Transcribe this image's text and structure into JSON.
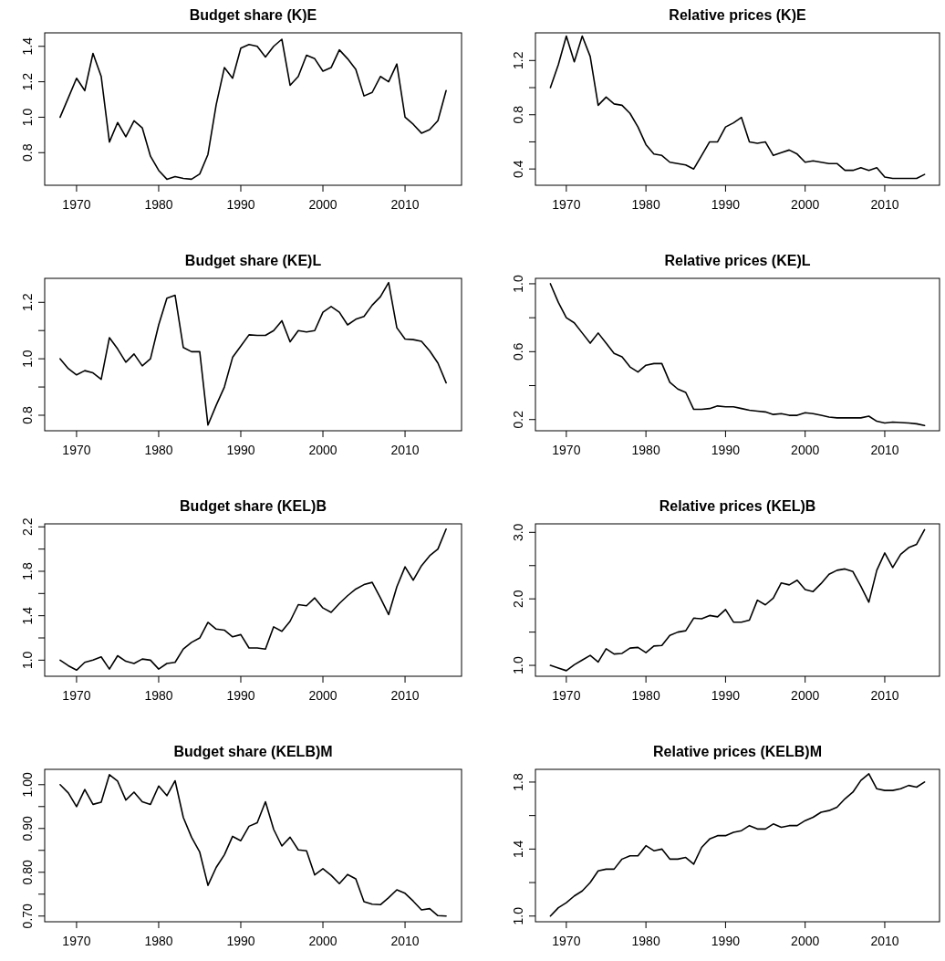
{
  "chart_data": [
    {
      "type": "line",
      "title": "Budget share (K)E",
      "color": "#000000",
      "xlim": [
        1966.12,
        2016.88
      ],
      "xticks": [
        1970,
        1980,
        1990,
        2000,
        2010
      ],
      "ylim": [
        0.616,
        1.476
      ],
      "yticks": [
        0.8,
        {
          "value": 1.0,
          "label": "1.0"
        },
        1.2,
        1.4
      ],
      "x": [
        1968,
        1969,
        1970,
        1971,
        1972,
        1973,
        1974,
        1975,
        1976,
        1977,
        1978,
        1979,
        1980,
        1981,
        1982,
        1983,
        1984,
        1985,
        1986,
        1987,
        1988,
        1989,
        1990,
        1991,
        1992,
        1993,
        1994,
        1995,
        1996,
        1997,
        1998,
        1999,
        2000,
        2001,
        2002,
        2003,
        2004,
        2005,
        2006,
        2007,
        2008,
        2009,
        2010,
        2011,
        2012,
        2013,
        2014,
        2015
      ],
      "values": [
        1.0,
        1.11,
        1.22,
        1.15,
        1.36,
        1.23,
        0.86,
        0.97,
        0.89,
        0.98,
        0.94,
        0.78,
        0.7,
        0.65,
        0.665,
        0.655,
        0.65,
        0.68,
        0.79,
        1.07,
        1.28,
        1.22,
        1.39,
        1.41,
        1.4,
        1.34,
        1.4,
        1.44,
        1.18,
        1.23,
        1.35,
        1.33,
        1.26,
        1.28,
        1.38,
        1.33,
        1.27,
        1.12,
        1.14,
        1.23,
        1.2,
        1.3,
        1.0,
        0.96,
        0.91,
        0.93,
        0.98,
        1.15
      ]
    },
    {
      "type": "line",
      "title": "Relative prices (K)E",
      "color": "#000000",
      "xlim": [
        1966.12,
        2016.88
      ],
      "xticks": [
        1970,
        1980,
        1990,
        2000,
        2010
      ],
      "ylim": [
        0.28,
        1.404
      ],
      "yticks": [
        0.4,
        {
          "value": 0.6,
          "label": null
        },
        0.8,
        {
          "value": 1.0,
          "label": null
        },
        1.2
      ],
      "x": [
        1968,
        1969,
        1970,
        1971,
        1972,
        1973,
        1974,
        1975,
        1976,
        1977,
        1978,
        1979,
        1980,
        1981,
        1982,
        1983,
        1984,
        1985,
        1986,
        1987,
        1988,
        1989,
        1990,
        1991,
        1992,
        1993,
        1994,
        1995,
        1996,
        1997,
        1998,
        1999,
        2000,
        2001,
        2002,
        2003,
        2004,
        2005,
        2006,
        2007,
        2008,
        2009,
        2010,
        2011,
        2012,
        2013,
        2014,
        2015
      ],
      "values": [
        1.0,
        1.17,
        1.38,
        1.19,
        1.38,
        1.23,
        0.87,
        0.93,
        0.88,
        0.87,
        0.81,
        0.71,
        0.58,
        0.51,
        0.5,
        0.45,
        0.44,
        0.43,
        0.4,
        0.5,
        0.6,
        0.6,
        0.71,
        0.74,
        0.78,
        0.6,
        0.59,
        0.6,
        0.5,
        0.52,
        0.54,
        0.51,
        0.45,
        0.46,
        0.45,
        0.44,
        0.44,
        0.39,
        0.39,
        0.41,
        0.39,
        0.41,
        0.34,
        0.33,
        0.33,
        0.33,
        0.33,
        0.36
      ]
    },
    {
      "type": "line",
      "title": "Budget share (KE)L",
      "color": "#000000",
      "xlim": [
        1966.12,
        2016.88
      ],
      "xticks": [
        1970,
        1980,
        1990,
        2000,
        2010
      ],
      "ylim": [
        0.745,
        1.285
      ],
      "yticks": [
        0.8,
        {
          "value": 0.9,
          "label": null
        },
        {
          "value": 1.0,
          "label": "1.0"
        },
        {
          "value": 1.1,
          "label": null
        },
        1.2
      ],
      "x": [
        1968,
        1969,
        1970,
        1971,
        1972,
        1973,
        1974,
        1975,
        1976,
        1977,
        1978,
        1979,
        1980,
        1981,
        1982,
        1983,
        1984,
        1985,
        1986,
        1987,
        1988,
        1989,
        1990,
        1991,
        1992,
        1993,
        1994,
        1995,
        1996,
        1997,
        1998,
        1999,
        2000,
        2001,
        2002,
        2003,
        2004,
        2005,
        2006,
        2007,
        2008,
        2009,
        2010,
        2011,
        2012,
        2013,
        2014,
        2015
      ],
      "values": [
        1.0,
        0.965,
        0.943,
        0.958,
        0.95,
        0.927,
        1.075,
        1.035,
        0.988,
        1.017,
        0.975,
        1.0,
        1.12,
        1.215,
        1.225,
        1.04,
        1.025,
        1.025,
        0.765,
        0.835,
        0.9,
        1.005,
        1.045,
        1.085,
        1.083,
        1.083,
        1.1,
        1.135,
        1.06,
        1.1,
        1.095,
        1.1,
        1.165,
        1.185,
        1.165,
        1.12,
        1.14,
        1.15,
        1.19,
        1.22,
        1.27,
        1.11,
        1.07,
        1.068,
        1.062,
        1.028,
        0.985,
        0.915
      ]
    },
    {
      "type": "line",
      "title": "Relative prices (KE)L",
      "color": "#000000",
      "xlim": [
        1966.12,
        2016.88
      ],
      "xticks": [
        1970,
        1980,
        1990,
        2000,
        2010
      ],
      "ylim": [
        0.134,
        1.032
      ],
      "yticks": [
        0.2,
        {
          "value": 0.4,
          "label": null
        },
        0.6,
        {
          "value": 0.8,
          "label": null
        },
        {
          "value": 1.0,
          "label": "1.0"
        }
      ],
      "x": [
        1968,
        1969,
        1970,
        1971,
        1972,
        1973,
        1974,
        1975,
        1976,
        1977,
        1978,
        1979,
        1980,
        1981,
        1982,
        1983,
        1984,
        1985,
        1986,
        1987,
        1988,
        1989,
        1990,
        1991,
        1992,
        1993,
        1994,
        1995,
        1996,
        1997,
        1998,
        1999,
        2000,
        2001,
        2002,
        2003,
        2004,
        2005,
        2006,
        2007,
        2008,
        2009,
        2010,
        2011,
        2012,
        2013,
        2014,
        2015
      ],
      "values": [
        1.0,
        0.89,
        0.8,
        0.77,
        0.71,
        0.65,
        0.71,
        0.65,
        0.59,
        0.57,
        0.51,
        0.48,
        0.52,
        0.53,
        0.53,
        0.42,
        0.38,
        0.36,
        0.26,
        0.26,
        0.265,
        0.28,
        0.275,
        0.275,
        0.265,
        0.255,
        0.25,
        0.245,
        0.23,
        0.235,
        0.225,
        0.225,
        0.24,
        0.235,
        0.225,
        0.215,
        0.21,
        0.21,
        0.21,
        0.21,
        0.22,
        0.19,
        0.18,
        0.185,
        0.182,
        0.18,
        0.175,
        0.165
      ]
    },
    {
      "type": "line",
      "title": "Budget share (KEL)B",
      "color": "#000000",
      "xlim": [
        1966.12,
        2016.88
      ],
      "xticks": [
        1970,
        1980,
        1990,
        2000,
        2010
      ],
      "ylim": [
        0.855,
        2.227
      ],
      "yticks": [
        {
          "value": 1.0,
          "label": "1.0"
        },
        {
          "value": 1.2,
          "label": null
        },
        1.4,
        {
          "value": 1.6,
          "label": null
        },
        1.8,
        {
          "value": 2.0,
          "label": null
        },
        2.2
      ],
      "x": [
        1968,
        1969,
        1970,
        1971,
        1972,
        1973,
        1974,
        1975,
        1976,
        1977,
        1978,
        1979,
        1980,
        1981,
        1982,
        1983,
        1984,
        1985,
        1986,
        1987,
        1988,
        1989,
        1990,
        1991,
        1992,
        1993,
        1994,
        1995,
        1996,
        1997,
        1998,
        1999,
        2000,
        2001,
        2002,
        2003,
        2004,
        2005,
        2006,
        2007,
        2008,
        2009,
        2010,
        2011,
        2012,
        2013,
        2014,
        2015
      ],
      "values": [
        1.0,
        0.95,
        0.91,
        0.98,
        1.0,
        1.03,
        0.92,
        1.04,
        0.99,
        0.97,
        1.01,
        1.0,
        0.92,
        0.97,
        0.98,
        1.1,
        1.16,
        1.2,
        1.34,
        1.28,
        1.27,
        1.21,
        1.23,
        1.11,
        1.11,
        1.1,
        1.3,
        1.26,
        1.35,
        1.5,
        1.49,
        1.56,
        1.47,
        1.43,
        1.51,
        1.58,
        1.64,
        1.68,
        1.7,
        1.56,
        1.41,
        1.66,
        1.84,
        1.72,
        1.85,
        1.94,
        2.0,
        2.18
      ]
    },
    {
      "type": "line",
      "title": "Relative prices (KEL)B",
      "color": "#000000",
      "xlim": [
        1966.12,
        2016.88
      ],
      "xticks": [
        1970,
        1980,
        1990,
        2000,
        2010
      ],
      "ylim": [
        0.836,
        3.128
      ],
      "yticks": [
        {
          "value": 1.0,
          "label": "1.0"
        },
        {
          "value": 1.5,
          "label": null
        },
        {
          "value": 2.0,
          "label": "2.0"
        },
        {
          "value": 2.5,
          "label": null
        },
        {
          "value": 3.0,
          "label": "3.0"
        }
      ],
      "x": [
        1968,
        1969,
        1970,
        1971,
        1972,
        1973,
        1974,
        1975,
        1976,
        1977,
        1978,
        1979,
        1980,
        1981,
        1982,
        1983,
        1984,
        1985,
        1986,
        1987,
        1988,
        1989,
        1990,
        1991,
        1992,
        1993,
        1994,
        1995,
        1996,
        1997,
        1998,
        1999,
        2000,
        2001,
        2002,
        2003,
        2004,
        2005,
        2006,
        2007,
        2008,
        2009,
        2010,
        2011,
        2012,
        2013,
        2014,
        2015
      ],
      "values": [
        1.0,
        0.96,
        0.92,
        1.01,
        1.08,
        1.15,
        1.05,
        1.25,
        1.17,
        1.18,
        1.26,
        1.27,
        1.19,
        1.29,
        1.3,
        1.45,
        1.5,
        1.52,
        1.71,
        1.7,
        1.75,
        1.73,
        1.84,
        1.65,
        1.65,
        1.68,
        1.98,
        1.91,
        2.01,
        2.24,
        2.21,
        2.28,
        2.14,
        2.11,
        2.23,
        2.37,
        2.43,
        2.45,
        2.41,
        2.19,
        1.95,
        2.43,
        2.69,
        2.47,
        2.67,
        2.77,
        2.82,
        3.04
      ]
    },
    {
      "type": "line",
      "title": "Budget share (KELB)M",
      "color": "#000000",
      "xlim": [
        1966.12,
        2016.88
      ],
      "xticks": [
        1970,
        1980,
        1990,
        2000,
        2010
      ],
      "ylim": [
        0.687,
        1.035
      ],
      "yticks": [
        {
          "value": 0.7,
          "label": "0.70"
        },
        {
          "value": 0.75,
          "label": null
        },
        {
          "value": 0.8,
          "label": "0.80"
        },
        {
          "value": 0.85,
          "label": null
        },
        {
          "value": 0.9,
          "label": "0.90"
        },
        {
          "value": 0.95,
          "label": null
        },
        {
          "value": 1.0,
          "label": "1.00"
        }
      ],
      "x": [
        1968,
        1969,
        1970,
        1971,
        1972,
        1973,
        1974,
        1975,
        1976,
        1977,
        1978,
        1979,
        1980,
        1981,
        1982,
        1983,
        1984,
        1985,
        1986,
        1987,
        1988,
        1989,
        1990,
        1991,
        1992,
        1993,
        1994,
        1995,
        1996,
        1997,
        1998,
        1999,
        2000,
        2001,
        2002,
        2003,
        2004,
        2005,
        2006,
        2007,
        2008,
        2009,
        2010,
        2011,
        2012,
        2013,
        2014,
        2015
      ],
      "values": [
        1.0,
        0.981,
        0.95,
        0.989,
        0.955,
        0.96,
        1.023,
        1.008,
        0.965,
        0.983,
        0.961,
        0.955,
        0.997,
        0.975,
        1.009,
        0.925,
        0.88,
        0.846,
        0.77,
        0.811,
        0.84,
        0.882,
        0.872,
        0.905,
        0.913,
        0.961,
        0.898,
        0.86,
        0.88,
        0.851,
        0.849,
        0.794,
        0.808,
        0.793,
        0.774,
        0.795,
        0.785,
        0.733,
        0.727,
        0.726,
        0.742,
        0.76,
        0.752,
        0.734,
        0.714,
        0.717,
        0.701,
        0.7
      ]
    },
    {
      "type": "line",
      "title": "Relative prices (KELB)M",
      "color": "#000000",
      "xlim": [
        1966.12,
        2016.88
      ],
      "xticks": [
        1970,
        1980,
        1990,
        2000,
        2010
      ],
      "ylim": [
        0.966,
        1.876
      ],
      "yticks": [
        {
          "value": 1.0,
          "label": "1.0"
        },
        {
          "value": 1.2,
          "label": null
        },
        1.4,
        {
          "value": 1.6,
          "label": null
        },
        1.8
      ],
      "x": [
        1968,
        1969,
        1970,
        1971,
        1972,
        1973,
        1974,
        1975,
        1976,
        1977,
        1978,
        1979,
        1980,
        1981,
        1982,
        1983,
        1984,
        1985,
        1986,
        1987,
        1988,
        1989,
        1990,
        1991,
        1992,
        1993,
        1994,
        1995,
        1996,
        1997,
        1998,
        1999,
        2000,
        2001,
        2002,
        2003,
        2004,
        2005,
        2006,
        2007,
        2008,
        2009,
        2010,
        2011,
        2012,
        2013,
        2014,
        2015
      ],
      "values": [
        1.0,
        1.05,
        1.08,
        1.12,
        1.15,
        1.2,
        1.27,
        1.28,
        1.28,
        1.34,
        1.36,
        1.36,
        1.42,
        1.39,
        1.4,
        1.34,
        1.34,
        1.35,
        1.31,
        1.41,
        1.46,
        1.48,
        1.48,
        1.5,
        1.51,
        1.54,
        1.52,
        1.52,
        1.55,
        1.53,
        1.54,
        1.54,
        1.57,
        1.59,
        1.62,
        1.63,
        1.65,
        1.7,
        1.74,
        1.81,
        1.85,
        1.76,
        1.75,
        1.75,
        1.76,
        1.78,
        1.77,
        1.8
      ]
    }
  ]
}
